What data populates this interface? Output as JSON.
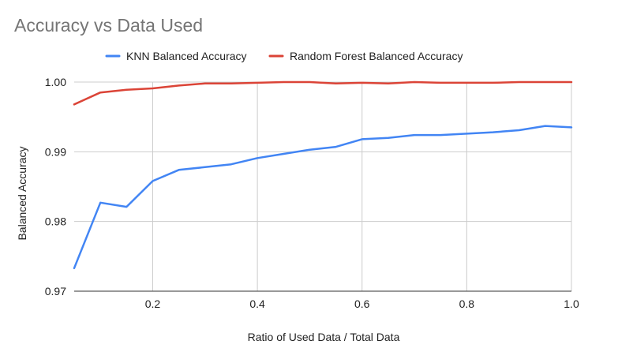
{
  "chart_data": {
    "type": "line",
    "title": "Accuracy vs Data Used",
    "xlabel": "Ratio of Used Data / Total Data",
    "ylabel": "Balanced Accuracy",
    "xlim": [
      0.05,
      1.0
    ],
    "ylim": [
      0.97,
      1.0
    ],
    "xticks": [
      "0.2",
      "0.4",
      "0.6",
      "0.8",
      "1.0"
    ],
    "xtick_values": [
      0.2,
      0.4,
      0.6,
      0.8,
      1.0
    ],
    "yticks": [
      "0.97",
      "0.98",
      "0.99",
      "1.00"
    ],
    "ytick_values": [
      0.97,
      0.98,
      0.99,
      1.0
    ],
    "grid": true,
    "legend_position": "top",
    "x": [
      0.05,
      0.1,
      0.15,
      0.2,
      0.25,
      0.3,
      0.35,
      0.4,
      0.45,
      0.5,
      0.55,
      0.6,
      0.65,
      0.7,
      0.75,
      0.8,
      0.85,
      0.9,
      0.95,
      1.0
    ],
    "series": [
      {
        "name": "KNN Balanced Accuracy",
        "color": "#4285f4",
        "values": [
          0.9733,
          0.9827,
          0.9821,
          0.9858,
          0.9874,
          0.9878,
          0.9882,
          0.9891,
          0.9897,
          0.9903,
          0.9907,
          0.9918,
          0.992,
          0.9924,
          0.9924,
          0.9926,
          0.9928,
          0.9931,
          0.9937,
          0.9935
        ]
      },
      {
        "name": "Random Forest Balanced Accuracy",
        "color": "#db4437",
        "values": [
          0.9968,
          0.9985,
          0.9989,
          0.9991,
          0.9995,
          0.9998,
          0.9998,
          0.9999,
          1.0,
          1.0,
          0.9998,
          0.9999,
          0.9998,
          1.0,
          0.9999,
          0.9999,
          0.9999,
          1.0,
          1.0,
          1.0
        ]
      }
    ]
  }
}
